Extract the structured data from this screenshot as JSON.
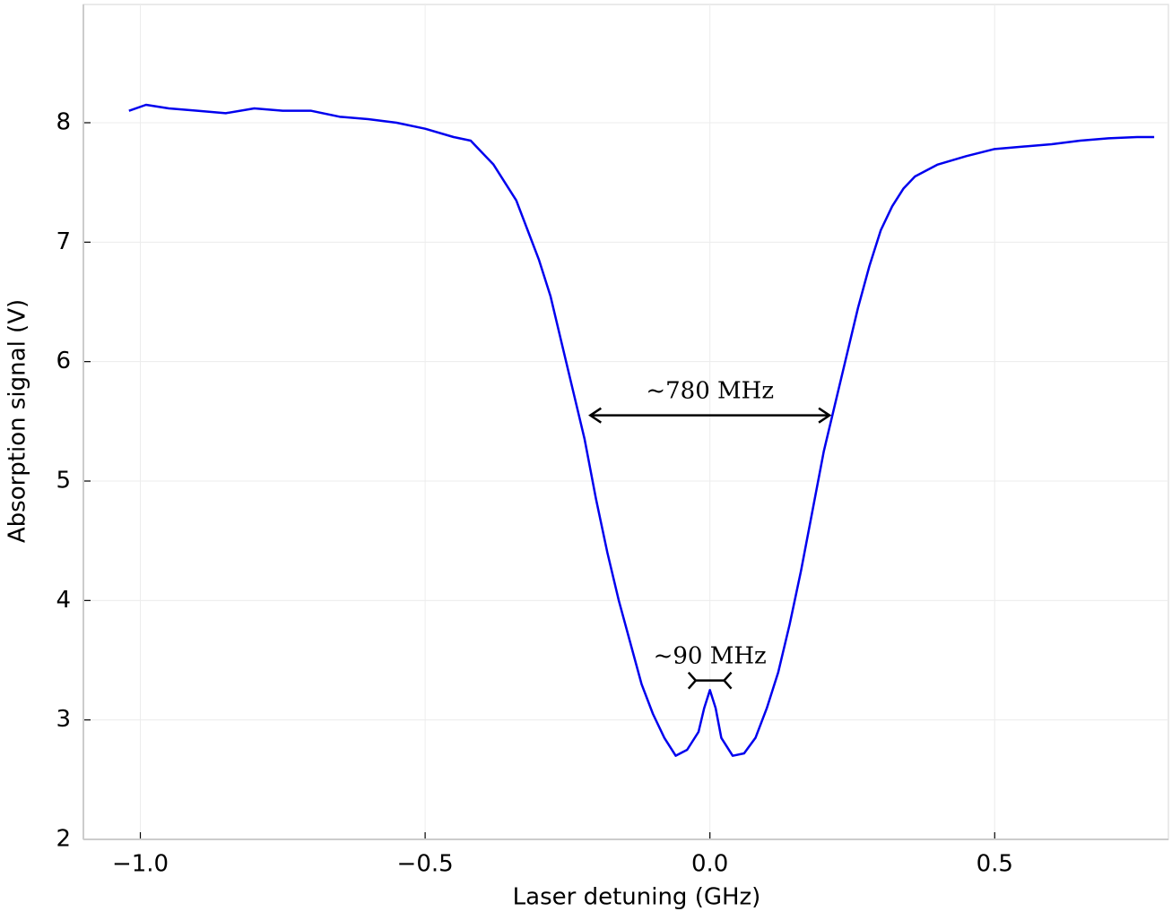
{
  "chart_data": {
    "type": "line",
    "xlabel": "Laser detuning (GHz)",
    "ylabel": "Absorption signal (V)",
    "x": [
      -1.02,
      -0.99,
      -0.95,
      -0.9,
      -0.85,
      -0.8,
      -0.75,
      -0.7,
      -0.65,
      -0.6,
      -0.55,
      -0.5,
      -0.45,
      -0.42,
      -0.4,
      -0.38,
      -0.36,
      -0.34,
      -0.32,
      -0.3,
      -0.28,
      -0.26,
      -0.24,
      -0.22,
      -0.2,
      -0.18,
      -0.16,
      -0.14,
      -0.12,
      -0.1,
      -0.08,
      -0.06,
      -0.04,
      -0.02,
      -0.01,
      0.0,
      0.01,
      0.02,
      0.04,
      0.06,
      0.08,
      0.1,
      0.12,
      0.14,
      0.16,
      0.18,
      0.2,
      0.22,
      0.24,
      0.26,
      0.28,
      0.3,
      0.32,
      0.34,
      0.36,
      0.4,
      0.45,
      0.5,
      0.55,
      0.6,
      0.65,
      0.7,
      0.75,
      0.78
    ],
    "series": [
      {
        "color": "#0000ee",
        "values": [
          8.1,
          8.15,
          8.12,
          8.1,
          8.08,
          8.12,
          8.1,
          8.1,
          8.05,
          8.03,
          8.0,
          7.95,
          7.88,
          7.85,
          7.75,
          7.65,
          7.5,
          7.35,
          7.1,
          6.85,
          6.55,
          6.15,
          5.75,
          5.35,
          4.85,
          4.4,
          4.0,
          3.65,
          3.3,
          3.05,
          2.85,
          2.7,
          2.75,
          2.9,
          3.1,
          3.25,
          3.1,
          2.85,
          2.7,
          2.72,
          2.85,
          3.1,
          3.4,
          3.8,
          4.25,
          4.75,
          5.25,
          5.65,
          6.05,
          6.45,
          6.8,
          7.1,
          7.3,
          7.45,
          7.55,
          7.65,
          7.72,
          7.78,
          7.8,
          7.82,
          7.85,
          7.87,
          7.88,
          7.88
        ]
      }
    ],
    "xlim": [
      -1.1,
      0.805
    ],
    "ylim": [
      2,
      8.99
    ],
    "xticks": [
      {
        "value": -1.0,
        "label": "−1.0"
      },
      {
        "value": -0.5,
        "label": "−0.5"
      },
      {
        "value": 0,
        "label": "0.0"
      },
      0.5
    ],
    "yticks": [
      2,
      3,
      4,
      5,
      6,
      7,
      8
    ],
    "grid": true,
    "annotations": [
      {
        "text": "~780 MHz",
        "xrange": [
          -0.21,
          0.21
        ],
        "y": 5.55,
        "style": "arrow"
      },
      {
        "text": "~90 MHz",
        "xrange": [
          -0.025,
          0.025
        ],
        "y": 3.33,
        "style": "bracket"
      }
    ]
  }
}
